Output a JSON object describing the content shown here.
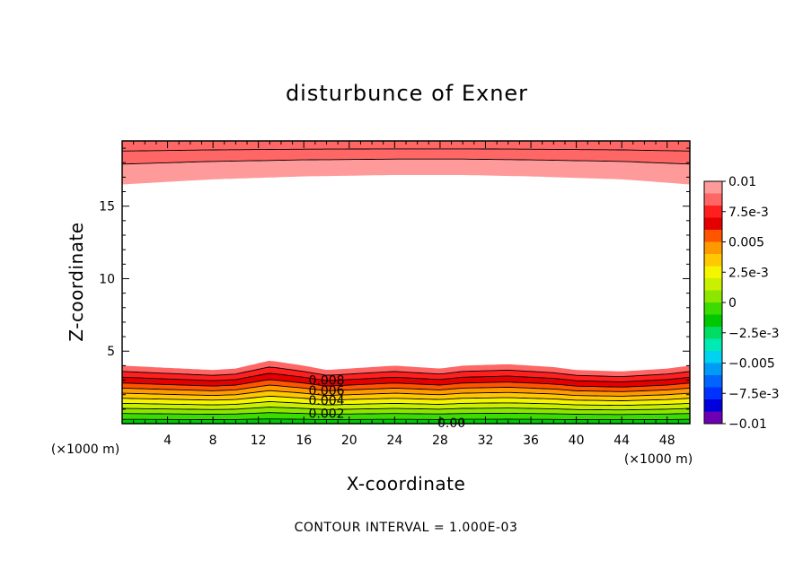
{
  "chart_data": {
    "type": "heatmap",
    "title": "disturbunce of Exner",
    "xlabel": "X-coordinate",
    "ylabel": "Z-coordinate",
    "x_unit_label": "(×1000 m)",
    "x_unit_label_right": "(×1000 m)",
    "xlim": [
      0,
      50
    ],
    "ylim": [
      0,
      19.5
    ],
    "x_ticks": [
      4,
      8,
      12,
      16,
      20,
      24,
      28,
      32,
      36,
      40,
      44,
      48
    ],
    "y_ticks": [
      5,
      10,
      15
    ],
    "contour_interval_text": "CONTOUR INTERVAL = 1.000E-03",
    "contour_labels": [
      {
        "text": "0.008",
        "x": 18,
        "y": 3.0
      },
      {
        "text": "0.006",
        "x": 18,
        "y": 2.3
      },
      {
        "text": "0.004",
        "x": 18,
        "y": 1.6
      },
      {
        "text": "0.002",
        "x": 18,
        "y": 0.7
      },
      {
        "text": "0.00",
        "x": 29,
        "y": 0.05
      }
    ],
    "colorbar": {
      "min": -0.01,
      "max": 0.01,
      "tick_labels": [
        "0.01",
        "7.5e-3",
        "0.005",
        "2.5e-3",
        "0",
        "−2.5e-3",
        "−0.005",
        "−7.5e-3",
        "−0.01"
      ],
      "colors": [
        "#ff9a9a",
        "#ff6666",
        "#ff1f1f",
        "#e40000",
        "#ff5500",
        "#ff9900",
        "#ffc800",
        "#f5f500",
        "#c8f000",
        "#8ce600",
        "#3cdc00",
        "#00c800",
        "#00dc64",
        "#00ebb4",
        "#00d2f0",
        "#009bf5",
        "#0064ff",
        "#0032ff",
        "#0000dc",
        "#6e00b4"
      ]
    },
    "boundary_layers": {
      "bottom": {
        "profile_x": [
          0,
          4,
          8,
          10,
          13,
          16,
          18,
          20,
          24,
          28,
          30,
          34,
          38,
          40,
          44,
          48,
          50
        ],
        "profile_offset": [
          0.0,
          -0.15,
          -0.3,
          -0.2,
          0.35,
          0.0,
          -0.3,
          -0.2,
          0.0,
          -0.2,
          0.0,
          0.1,
          -0.1,
          -0.3,
          -0.4,
          -0.2,
          0.0
        ],
        "levels": [
          0.0,
          0.001,
          0.002,
          0.003,
          0.004,
          0.005,
          0.006,
          0.007,
          0.008,
          0.009,
          0.01
        ],
        "level_heights": [
          0.0,
          0.3,
          0.7,
          1.05,
          1.4,
          1.75,
          2.1,
          2.45,
          2.8,
          3.2,
          3.6
        ],
        "fill_colors": [
          "#00c800",
          "#3cdc00",
          "#8ce600",
          "#c8f000",
          "#f5f500",
          "#ffc800",
          "#ff9900",
          "#ff5500",
          "#e40000",
          "#ff1f1f",
          "#ff6666",
          "#ff9a9a"
        ],
        "top_height": 4.0
      },
      "top": {
        "profile_x": [
          0,
          8,
          16,
          24,
          30,
          36,
          44,
          50
        ],
        "profile_offset": [
          0.0,
          0.35,
          0.55,
          0.65,
          0.65,
          0.55,
          0.35,
          0.0
        ],
        "bottom_height": 16.5,
        "inner_contour_heights": [
          17.9,
          18.8
        ],
        "fill_colors": [
          "#ff9a9a",
          "#ff6666"
        ]
      }
    }
  }
}
